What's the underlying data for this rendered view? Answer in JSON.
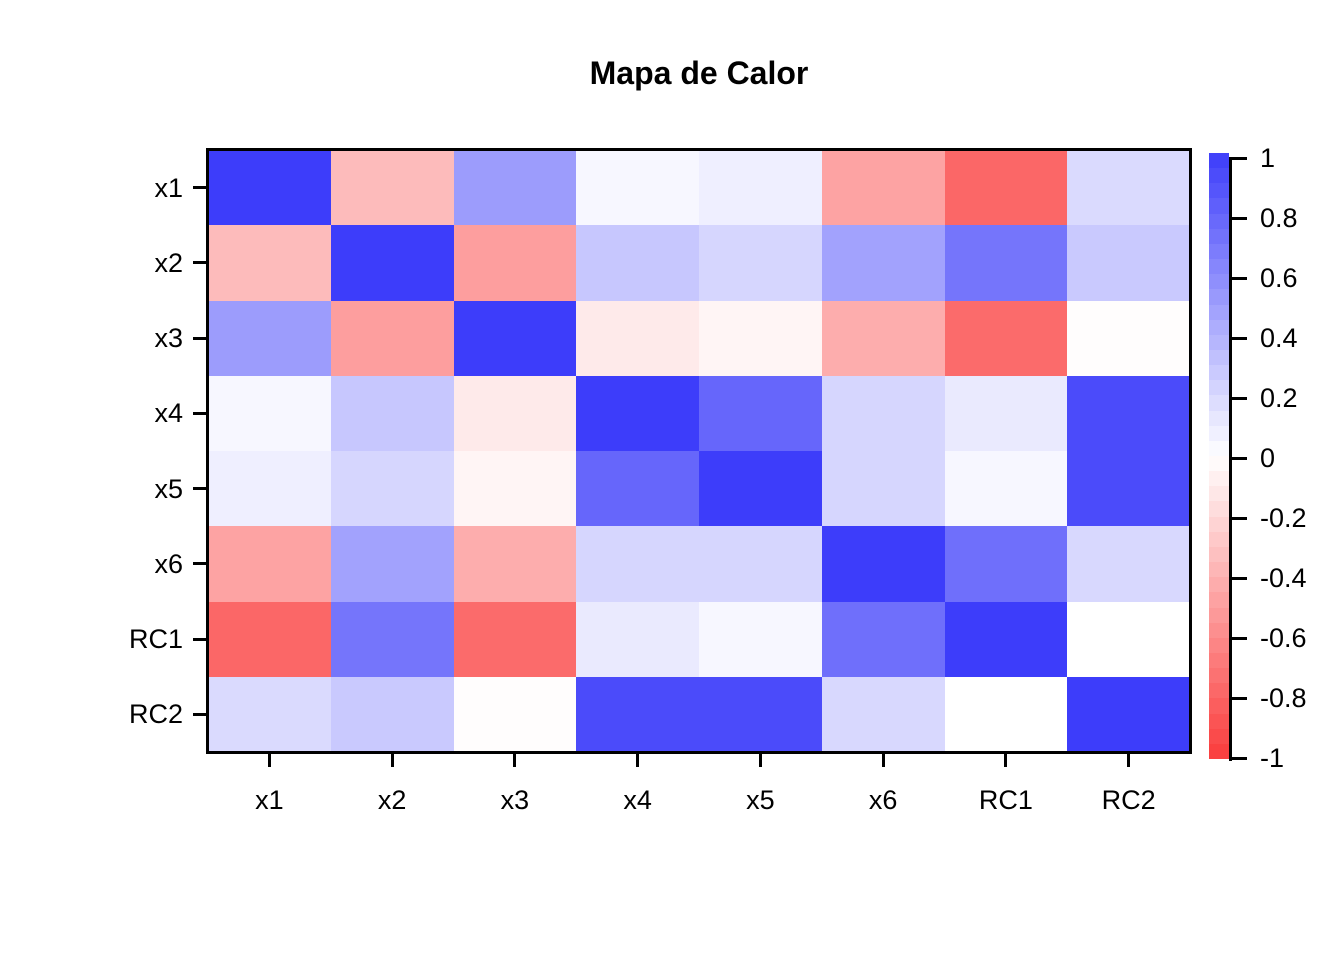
{
  "title": "Mapa de Calor",
  "chart_data": {
    "type": "heatmap",
    "title": "Mapa de Calor",
    "rows": [
      "x1",
      "x2",
      "x3",
      "x4",
      "x5",
      "x6",
      "RC1",
      "RC2"
    ],
    "cols": [
      "x1",
      "x2",
      "x3",
      "x4",
      "x5",
      "x6",
      "RC1",
      "RC2"
    ],
    "matrix": [
      [
        1.0,
        -0.35,
        0.51,
        0.04,
        0.08,
        -0.47,
        -0.78,
        0.19
      ],
      [
        -0.35,
        1.0,
        -0.5,
        0.29,
        0.21,
        0.48,
        0.71,
        0.28
      ],
      [
        0.51,
        -0.5,
        1.0,
        -0.11,
        -0.05,
        -0.42,
        -0.76,
        -0.01
      ],
      [
        0.04,
        0.29,
        -0.11,
        1.0,
        0.79,
        0.21,
        0.11,
        0.93
      ],
      [
        0.08,
        0.21,
        -0.05,
        0.79,
        1.0,
        0.21,
        0.04,
        0.93
      ],
      [
        -0.47,
        0.48,
        -0.42,
        0.21,
        0.21,
        1.0,
        0.74,
        0.2
      ],
      [
        -0.78,
        0.71,
        -0.76,
        0.11,
        0.04,
        0.74,
        1.0,
        0.0
      ],
      [
        0.19,
        0.28,
        -0.01,
        0.93,
        0.93,
        0.2,
        0.0,
        1.0
      ]
    ],
    "value_range": [
      -1,
      1
    ],
    "grid_lines": false,
    "colorbar": {
      "position": "right",
      "tick_values": [
        1,
        0.8,
        0.6,
        0.4,
        0.2,
        0,
        -0.2,
        -0.4,
        -0.6,
        -0.8,
        -1
      ],
      "tick_labels": [
        "1",
        "0.8",
        "0.6",
        "0.4",
        "0.2",
        "0",
        "-0.2",
        "-0.4",
        "-0.6",
        "-0.8",
        "-1"
      ],
      "color_max": "#3D3DFA",
      "color_zero": "#FFFFFF",
      "color_min": "#FA3C3C",
      "steps": 40
    }
  }
}
